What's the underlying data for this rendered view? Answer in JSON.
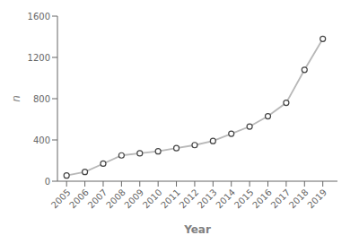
{
  "chart_data": {
    "type": "line",
    "xlabel": "Year",
    "ylabel": "n",
    "x": [
      2005,
      2006,
      2007,
      2008,
      2009,
      2010,
      2011,
      2012,
      2013,
      2014,
      2015,
      2016,
      2017,
      2018,
      2019
    ],
    "values": [
      55,
      90,
      170,
      250,
      270,
      290,
      320,
      350,
      390,
      460,
      530,
      630,
      760,
      1080,
      1380
    ],
    "color": "#b8b8b8",
    "marker": "circle",
    "xlim": [
      2004.5,
      2019.8
    ],
    "xticks": [
      2005,
      2006,
      2007,
      2008,
      2009,
      2010,
      2011,
      2012,
      2013,
      2014,
      2015,
      2016,
      2017,
      2018,
      2019
    ],
    "ylim": [
      0,
      1600
    ],
    "yticks": [
      0,
      400,
      800,
      1200,
      1600
    ],
    "grid": false
  }
}
